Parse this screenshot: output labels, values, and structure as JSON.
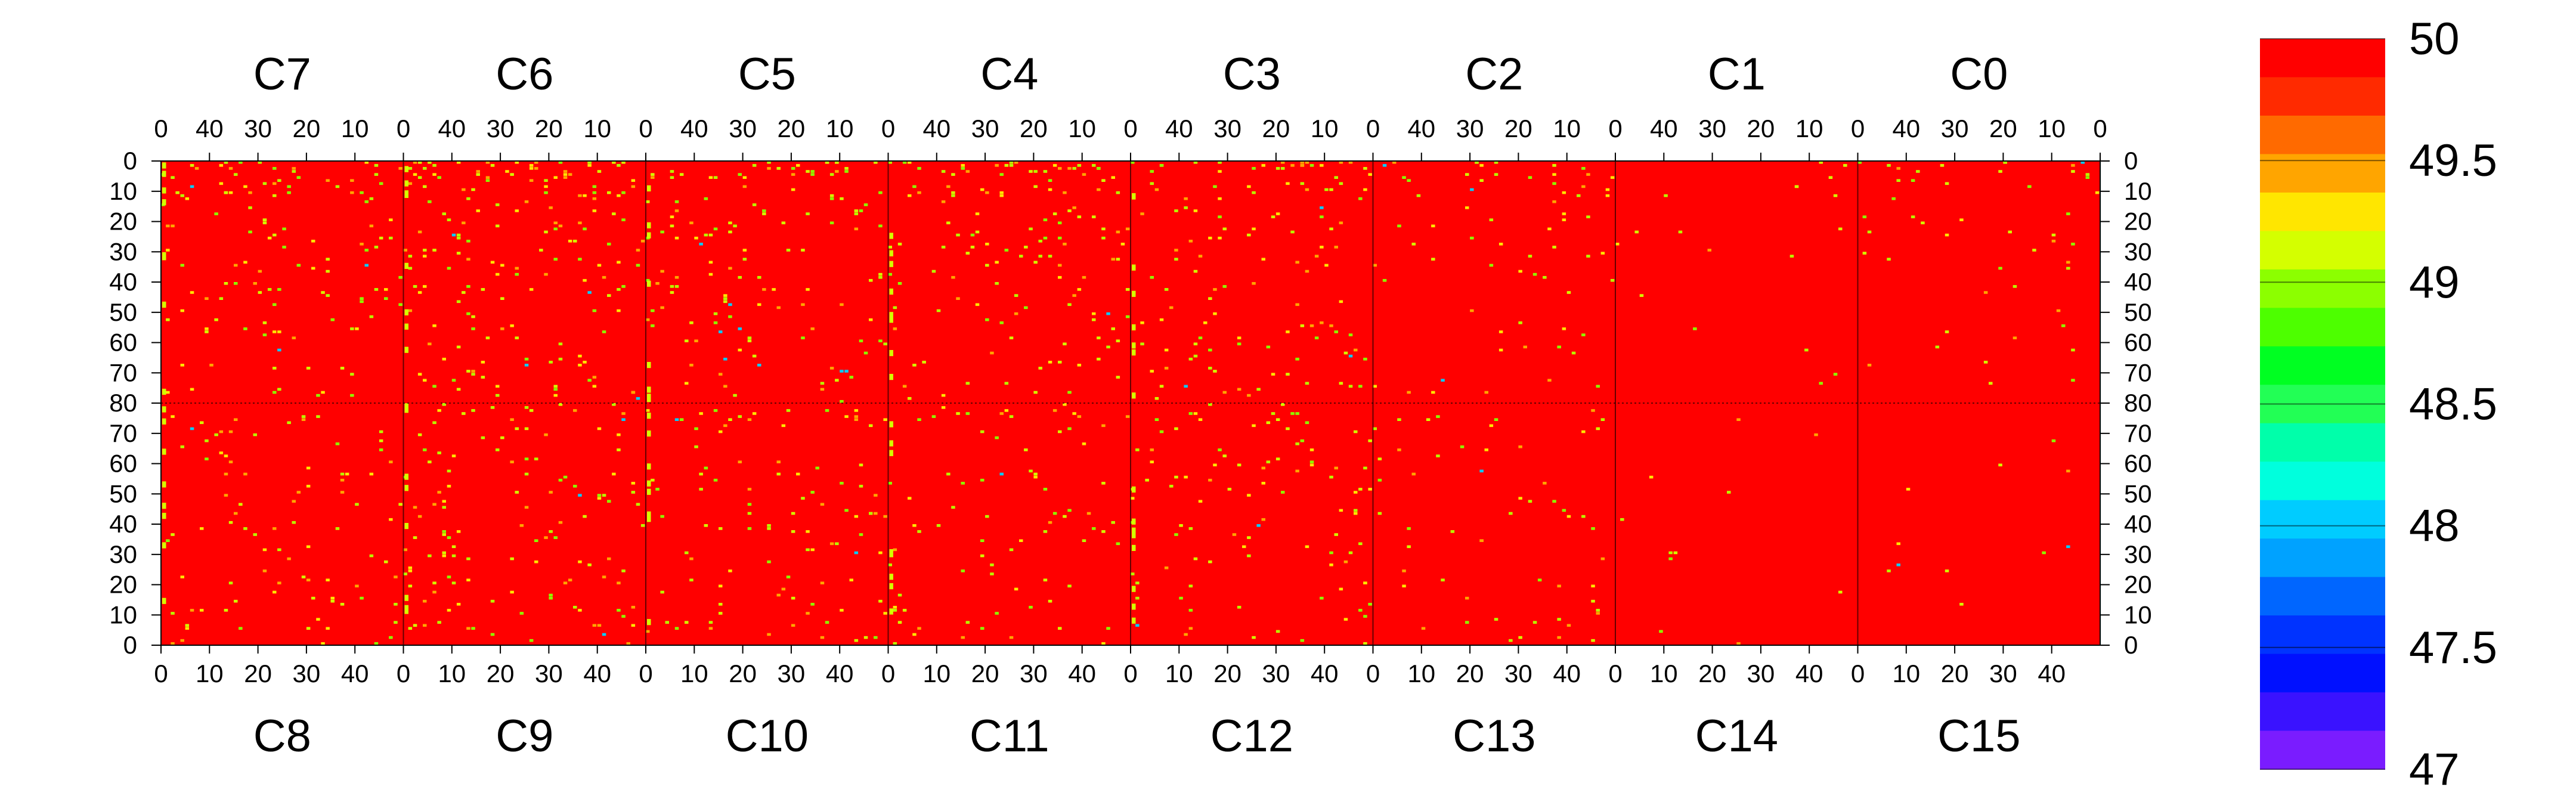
{
  "chart_data": {
    "type": "heatmap",
    "title": "",
    "top_panels": [
      "C7",
      "C6",
      "C5",
      "C4",
      "C3",
      "C2",
      "C1",
      "C0"
    ],
    "bottom_panels": [
      "C8",
      "C9",
      "C10",
      "C11",
      "C12",
      "C13",
      "C14",
      "C15"
    ],
    "top_x_ticks": [
      "40",
      "30",
      "20",
      "10",
      "0"
    ],
    "bottom_x_ticks": [
      "0",
      "10",
      "20",
      "30",
      "40"
    ],
    "x_range": [
      0,
      50
    ],
    "top_y_ticks": [
      "0",
      "10",
      "20",
      "30",
      "40",
      "50",
      "60",
      "70",
      "80"
    ],
    "bottom_y_ticks": [
      "70",
      "60",
      "50",
      "40",
      "30",
      "20",
      "10",
      "0"
    ],
    "y_range": [
      0,
      80
    ],
    "background_value": 50,
    "colorbar": {
      "min": 47,
      "max": 50,
      "ticks": [
        "50",
        "49.5",
        "49",
        "48.5",
        "48",
        "47.5",
        "47"
      ],
      "colors": [
        "#ff0000",
        "#ff2a00",
        "#ff6a00",
        "#ffa500",
        "#ffe600",
        "#d4ff00",
        "#8cff00",
        "#4dff00",
        "#00ff22",
        "#22ff55",
        "#00ffaa",
        "#00ffdd",
        "#00ccff",
        "#00a2ff",
        "#0066ff",
        "#0033ff",
        "#0010ff",
        "#3a12ff",
        "#7a1cff"
      ]
    },
    "outlier_density": [
      0.55,
      0.75,
      0.6,
      0.6,
      0.55,
      0.3,
      0.08,
      0.22,
      0.4,
      0.55,
      0.45,
      0.35,
      0.45,
      0.25,
      0.05,
      0.05
    ],
    "note": "All 16 channel panels are predominantly 50 with scattered lower values (~49–49.5, rare ~48) near 0."
  }
}
